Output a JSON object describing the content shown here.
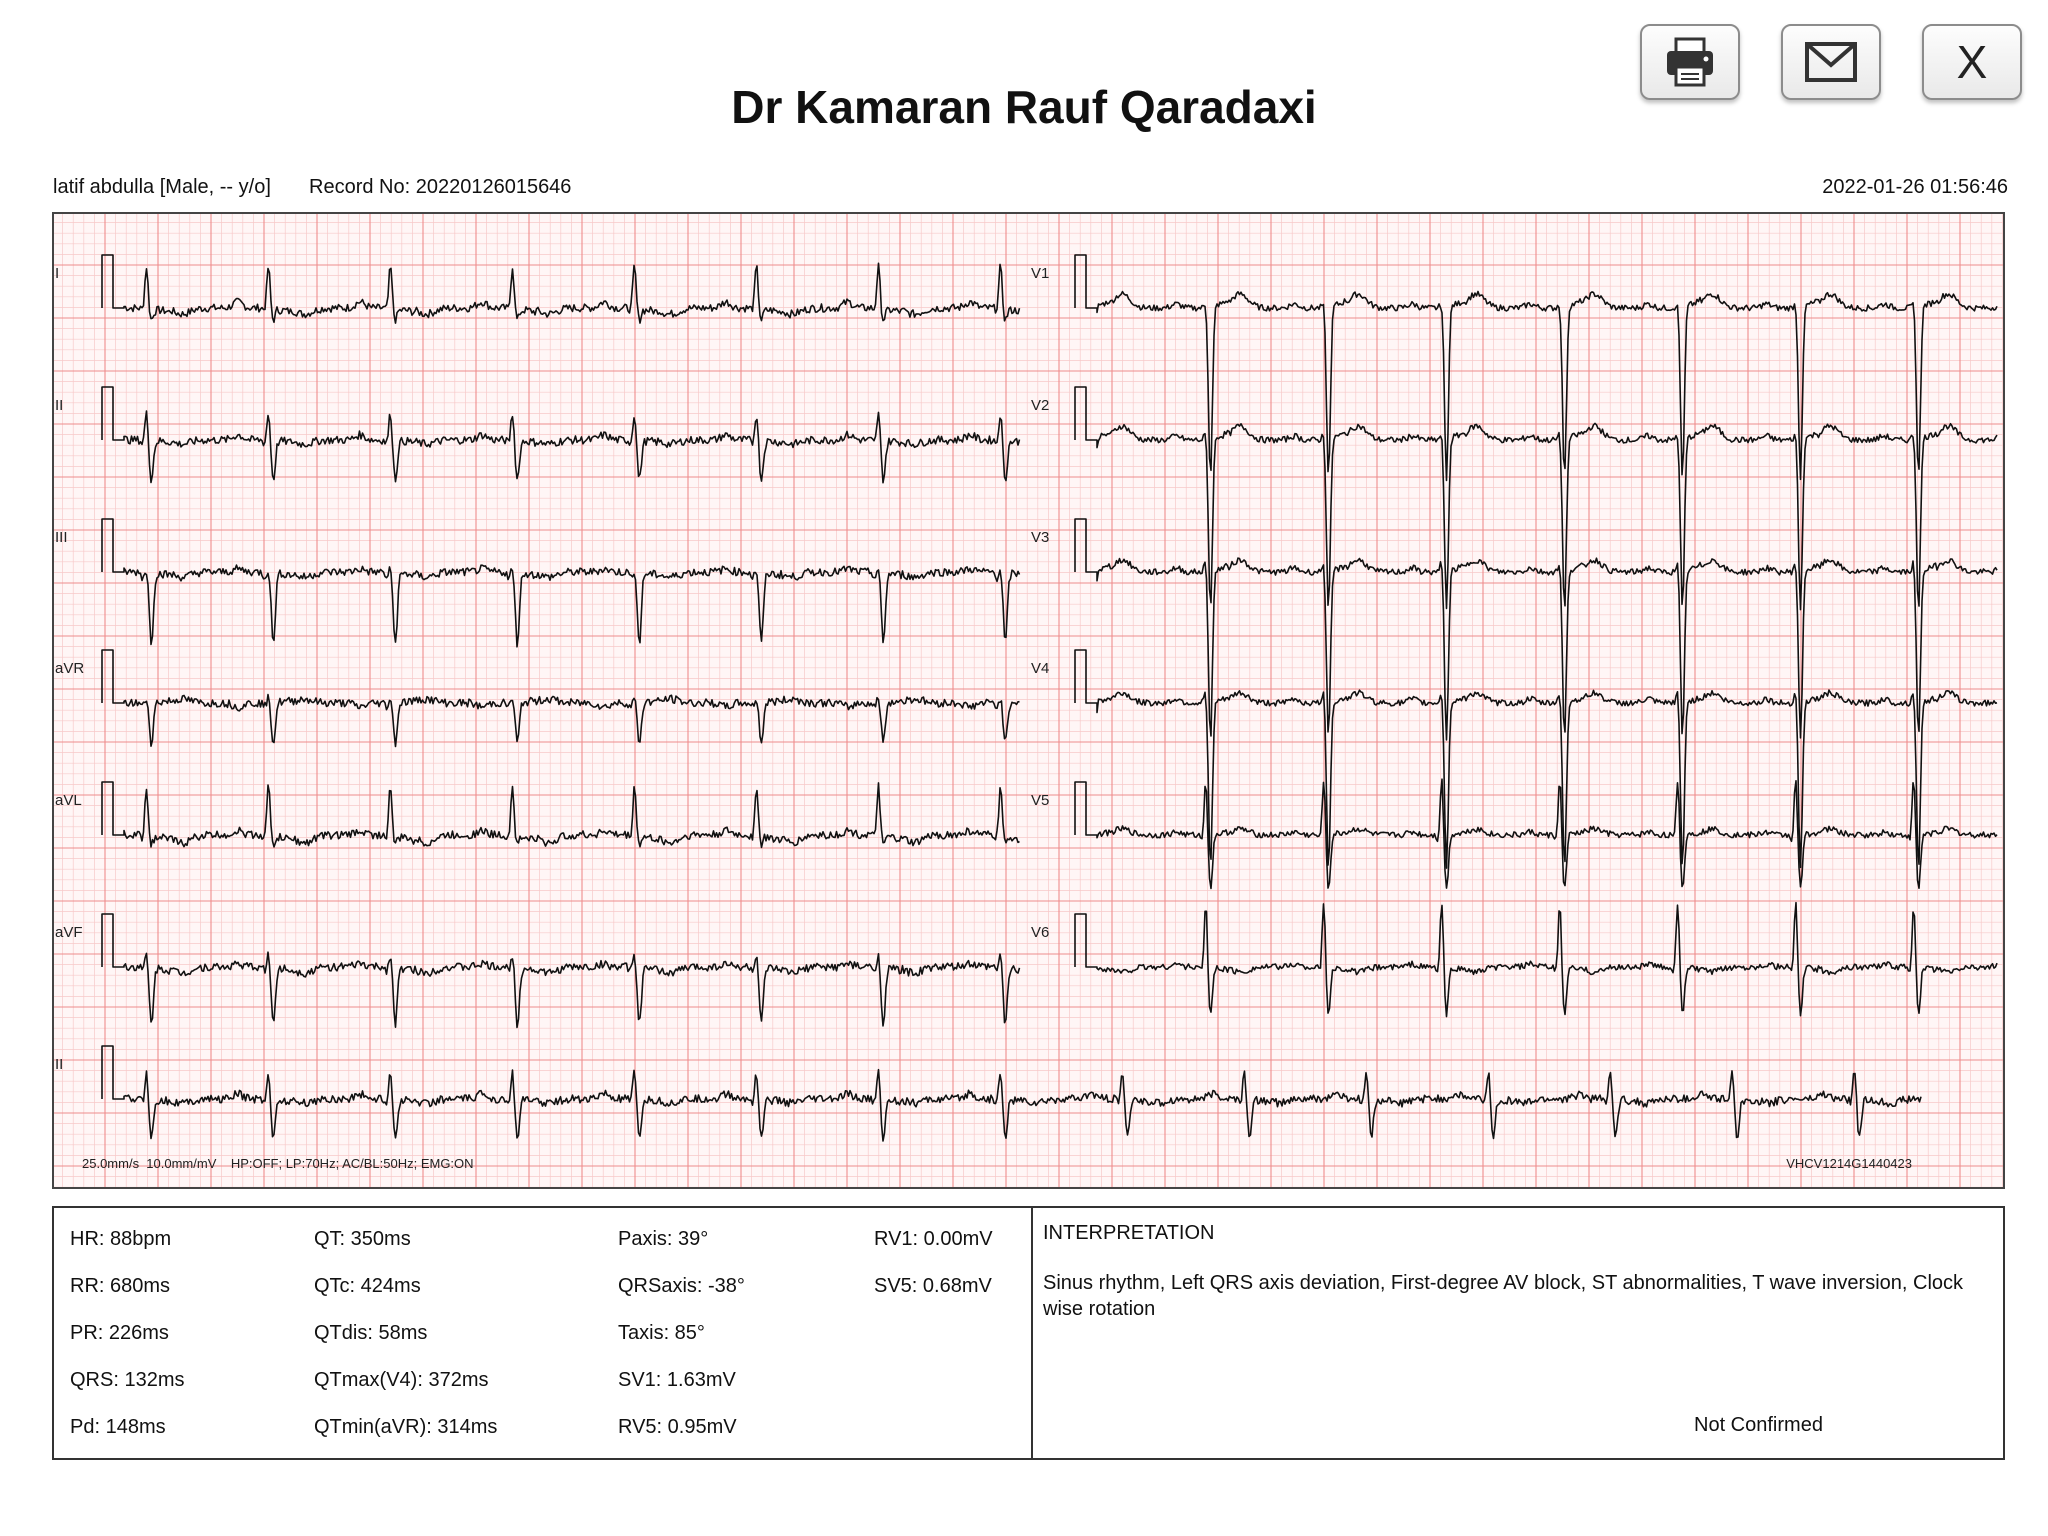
{
  "toolbar": {
    "print_icon": "printer-icon",
    "mail_icon": "envelope-icon",
    "close_label": "X"
  },
  "header": {
    "title": "Dr Kamaran Rauf Qaradaxi",
    "patient": "latif abdulla [Male, -- y/o]",
    "record": "Record No: 20220126015646",
    "datetime": "2022-01-26 01:56:46"
  },
  "ecg": {
    "leads_left": [
      "I",
      "II",
      "III",
      "aVR",
      "aVL",
      "aVF"
    ],
    "leads_right": [
      "V1",
      "V2",
      "V3",
      "V4",
      "V5",
      "V6"
    ],
    "rhythm_lead": "II",
    "footer_settings": "25.0mm/s  10.0mm/mV    HP:OFF; LP:70Hz; AC/BL:50Hz; EMG:ON",
    "device_id": "VHCV1214G1440423",
    "colors": {
      "grid_minor": "#f7c9c9",
      "grid_major": "#ee8c8c",
      "trace": "#111111"
    }
  },
  "measurements": {
    "col1": [
      "HR: 88bpm",
      "RR: 680ms",
      "PR: 226ms",
      "QRS: 132ms",
      "Pd: 148ms"
    ],
    "col2": [
      "QT: 350ms",
      "QTc: 424ms",
      "QTdis: 58ms",
      "QTmax(V4): 372ms",
      "QTmin(aVR): 314ms"
    ],
    "col3": [
      "Paxis: 39°",
      "QRSaxis: -38°",
      "Taxis: 85°",
      "SV1: 1.63mV",
      "RV5: 0.95mV"
    ],
    "col4": [
      "RV1: 0.00mV",
      "SV5: 0.68mV"
    ]
  },
  "interpretation": {
    "title": "INTERPRETATION",
    "text": "Sinus rhythm, Left QRS axis deviation, First-degree AV block, ST abnormalities, T wave inversion, Clock wise rotation",
    "status": "Not Confirmed"
  }
}
